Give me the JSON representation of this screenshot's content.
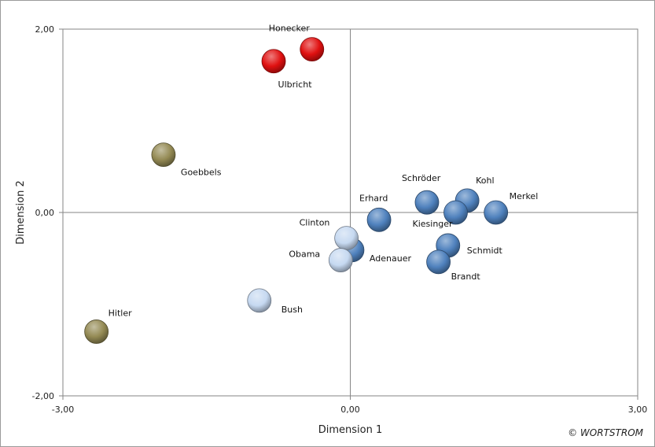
{
  "chart_data": {
    "type": "scatter",
    "xlabel": "Dimension 1",
    "ylabel": "Dimension 2",
    "xlim": [
      -3,
      3
    ],
    "ylim": [
      -2,
      2
    ],
    "x_ticks": [
      "-3,00",
      "0,00",
      "3,00"
    ],
    "y_ticks": [
      "2,00",
      "0,00",
      "-2,00"
    ],
    "grid": false,
    "reference_lines": {
      "x": 0,
      "y": 0
    },
    "series": [
      {
        "color": "#e01010",
        "points": [
          {
            "label": "Honecker",
            "x": -0.4,
            "y": 1.78
          },
          {
            "label": "Ulbricht",
            "x": -0.8,
            "y": 1.65
          }
        ]
      },
      {
        "color": "#948a54",
        "points": [
          {
            "label": "Goebbels",
            "x": -1.95,
            "y": 0.63
          },
          {
            "label": "Hitler",
            "x": -2.65,
            "y": -1.3
          }
        ]
      },
      {
        "color": "#4f81bd",
        "points": [
          {
            "label": "Erhard",
            "x": 0.3,
            "y": -0.08
          },
          {
            "label": "Schröder",
            "x": 0.8,
            "y": 0.11
          },
          {
            "label": "Kohl",
            "x": 1.22,
            "y": 0.13
          },
          {
            "label": "Kiesinger",
            "x": 1.1,
            "y": 0.0
          },
          {
            "label": "Merkel",
            "x": 1.52,
            "y": 0.0
          },
          {
            "label": "Adenauer",
            "x": 0.02,
            "y": -0.41
          },
          {
            "label": "Schmidt",
            "x": 1.02,
            "y": -0.36
          },
          {
            "label": "Brandt",
            "x": 0.92,
            "y": -0.54
          }
        ]
      },
      {
        "color": "#c6d9f1",
        "points": [
          {
            "label": "Clinton",
            "x": -0.04,
            "y": -0.28
          },
          {
            "label": "Obama",
            "x": -0.1,
            "y": -0.52
          },
          {
            "label": "Bush",
            "x": -0.95,
            "y": -0.96
          }
        ]
      }
    ]
  },
  "copyright": "© WORTSTROM"
}
